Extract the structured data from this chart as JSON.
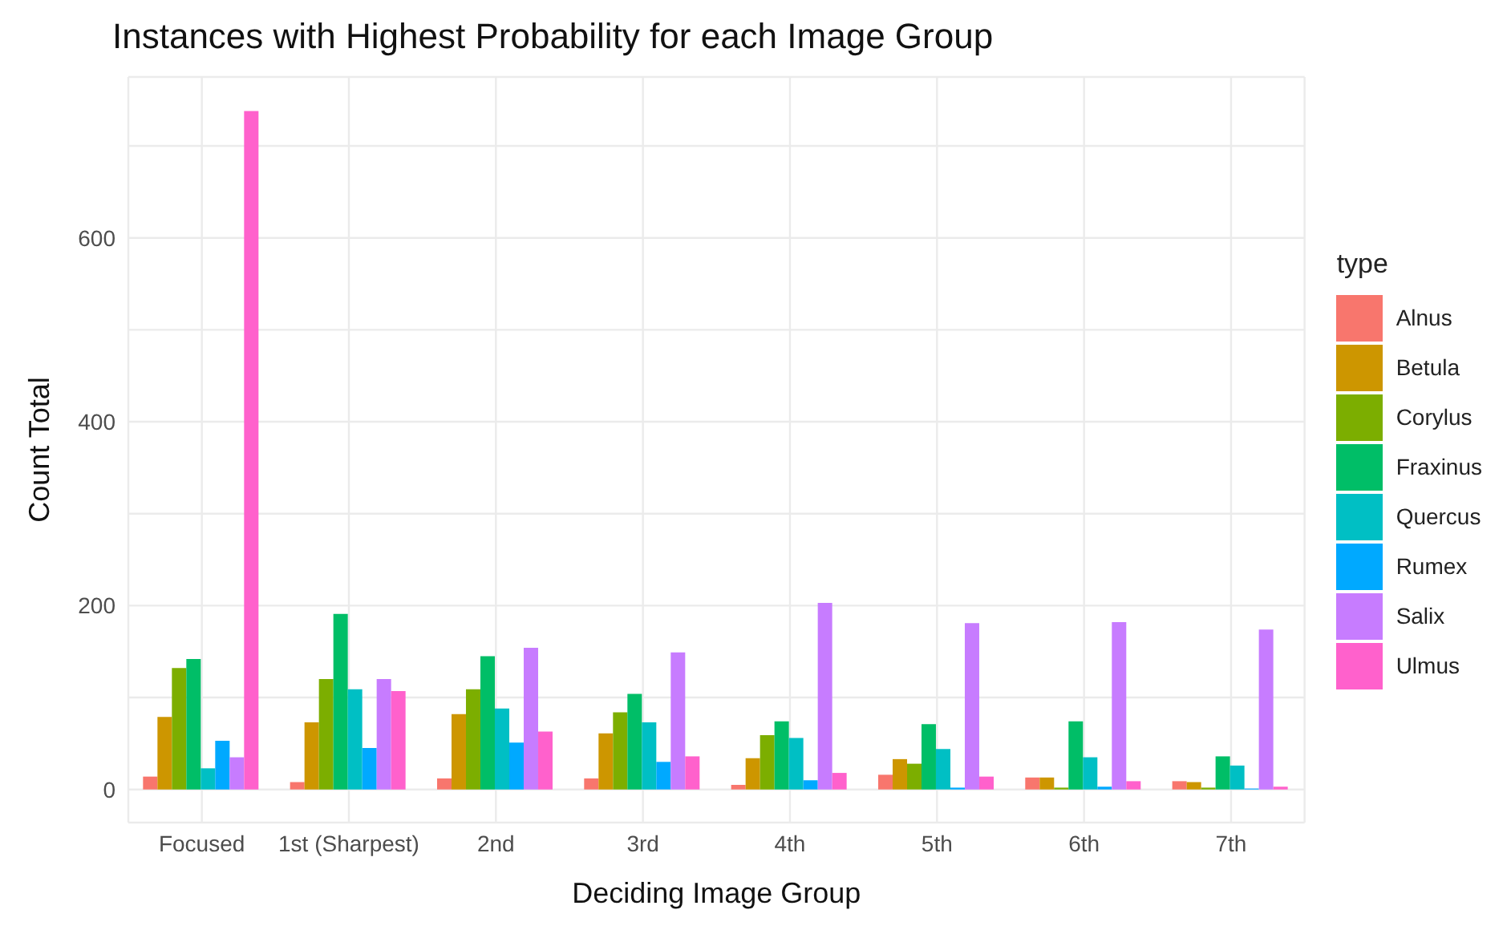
{
  "chart_data": {
    "type": "bar",
    "title": "Instances with Highest Probability for each Image Group",
    "xlabel": "Deciding Image Group",
    "ylabel": "Count Total",
    "legend_title": "type",
    "categories": [
      "Focused",
      "1st (Sharpest)",
      "2nd",
      "3rd",
      "4th",
      "5th",
      "6th",
      "7th"
    ],
    "series": [
      {
        "name": "Alnus",
        "color": "#f8766d",
        "values": [
          14,
          8,
          12,
          12,
          5,
          16,
          13,
          9
        ]
      },
      {
        "name": "Betula",
        "color": "#cd9600",
        "values": [
          79,
          73,
          82,
          61,
          34,
          33,
          13,
          8
        ]
      },
      {
        "name": "Corylus",
        "color": "#7cae00",
        "values": [
          132,
          120,
          109,
          84,
          59,
          28,
          2,
          2
        ]
      },
      {
        "name": "Fraxinus",
        "color": "#00be67",
        "values": [
          142,
          191,
          145,
          104,
          74,
          71,
          74,
          36
        ]
      },
      {
        "name": "Quercus",
        "color": "#00bfc4",
        "values": [
          23,
          109,
          88,
          73,
          56,
          44,
          35,
          26
        ]
      },
      {
        "name": "Rumex",
        "color": "#00a9ff",
        "values": [
          53,
          45,
          51,
          30,
          10,
          2,
          3,
          1
        ]
      },
      {
        "name": "Salix",
        "color": "#c77cff",
        "values": [
          35,
          120,
          154,
          149,
          203,
          181,
          182,
          174
        ]
      },
      {
        "name": "Ulmus",
        "color": "#ff61cc",
        "values": [
          738,
          107,
          63,
          36,
          18,
          14,
          9,
          3
        ]
      }
    ],
    "ylim": [
      -36,
      775
    ],
    "yticks": [
      0,
      {
        "value": 100,
        "label": null
      },
      200,
      {
        "value": 300,
        "label": null
      },
      400,
      {
        "value": 500,
        "label": null
      },
      600,
      {
        "value": 700,
        "label": null
      }
    ],
    "grid": true,
    "legend": "right"
  }
}
